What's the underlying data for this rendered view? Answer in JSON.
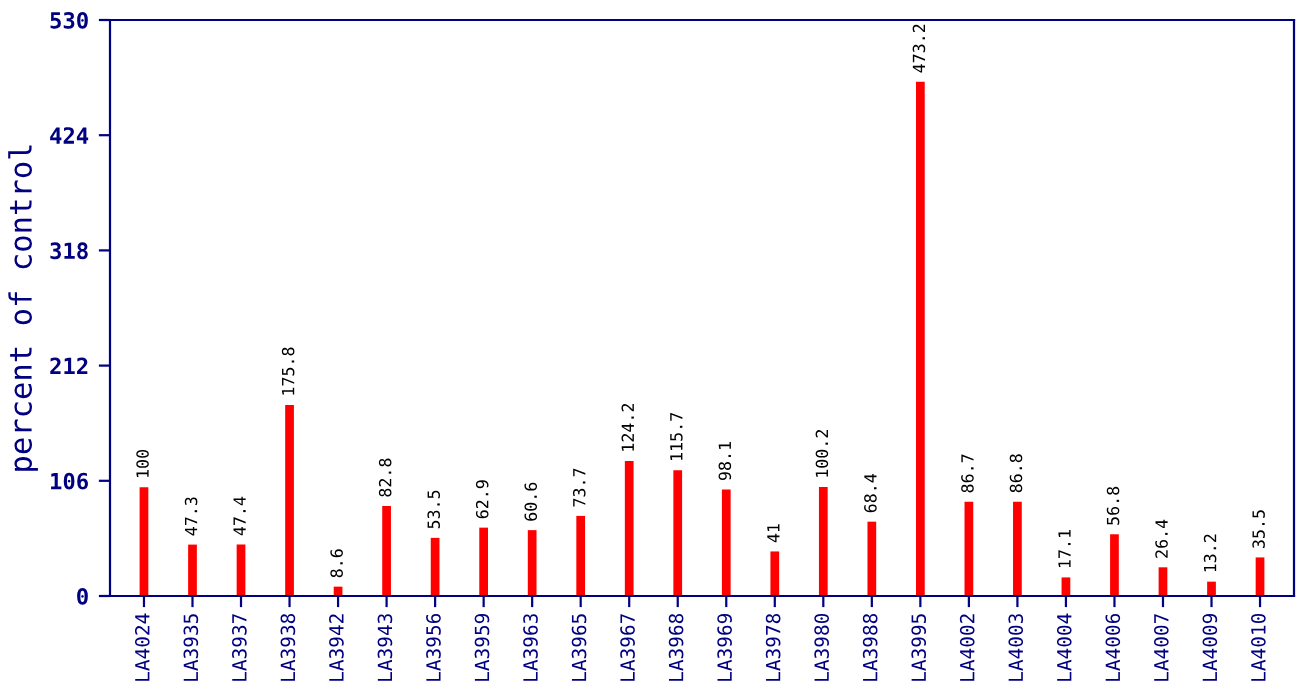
{
  "chart_data": {
    "type": "bar",
    "ylabel": "percent of control",
    "categories": [
      "LA4024",
      "LA3935",
      "LA3937",
      "LA3938",
      "LA3942",
      "LA3943",
      "LA3956",
      "LA3959",
      "LA3963",
      "LA3965",
      "LA3967",
      "LA3968",
      "LA3969",
      "LA3978",
      "LA3980",
      "LA3988",
      "LA3995",
      "LA4002",
      "LA4003",
      "LA4004",
      "LA4006",
      "LA4007",
      "LA4009",
      "LA4010"
    ],
    "values": [
      100,
      47.3,
      47.4,
      175.8,
      8.6,
      82.8,
      53.5,
      62.9,
      60.6,
      73.7,
      124.2,
      115.7,
      98.1,
      41,
      100.2,
      68.4,
      473.2,
      86.7,
      86.8,
      17.1,
      56.8,
      26.4,
      13.2,
      35.5
    ],
    "color": "#ff0000",
    "ylim": [
      0,
      530
    ],
    "yticks": [
      0,
      106,
      212,
      318,
      424,
      530
    ],
    "data_labels": true,
    "grid": false,
    "legend": false
  }
}
